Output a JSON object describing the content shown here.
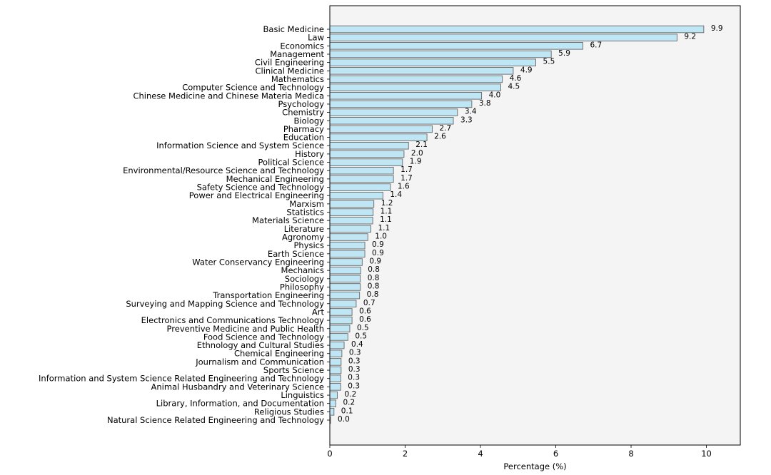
{
  "chart_data": {
    "type": "bar",
    "orientation": "horizontal",
    "xlabel": "Percentage (%)",
    "ylabel": "",
    "xlim": [
      0,
      10.9
    ],
    "x_ticks": [
      0,
      2,
      4,
      6,
      8,
      10
    ],
    "grid": false,
    "bar_color": "#bfe6f5",
    "bar_edge_color": "#666666",
    "plot_background": "#f4f4f4",
    "categories": [
      "Basic Medicine",
      "Law",
      "Economics",
      "Management",
      "Civil Engineering",
      "Clinical Medicine",
      "Mathematics",
      "Computer Science and Technology",
      "Chinese Medicine and Chinese Materia Medica",
      "Psychology",
      "Chemistry",
      "Biology",
      "Pharmacy",
      "Education",
      "Information Science and System Science",
      "History",
      "Political Science",
      "Environmental/Resource Science and Technology",
      "Mechanical Engineering",
      "Safety Science and Technology",
      "Power and Electrical Engineering",
      "Marxism",
      "Statistics",
      "Materials Science",
      "Literature",
      "Agronomy",
      "Physics",
      "Earth Science",
      "Water Conservancy Engineering",
      "Mechanics",
      "Sociology",
      "Philosophy",
      "Transportation Engineering",
      "Surveying and Mapping Science and Technology",
      "Art",
      "Electronics and Communications Technology",
      "Preventive Medicine and Public Health",
      "Food Science and Technology",
      "Ethnology and Cultural Studies",
      "Chemical Engineering",
      "Journalism and Communication",
      "Sports Science",
      "Information and System Science Related Engineering and Technology",
      "Animal Husbandry and Veterinary Science",
      "Linguistics",
      "Library, Information, and Documentation",
      "Religious Studies",
      "Natural Science Related Engineering and Technology"
    ],
    "values": [
      9.93,
      9.22,
      6.72,
      5.88,
      5.47,
      4.87,
      4.58,
      4.54,
      4.03,
      3.77,
      3.39,
      3.28,
      2.72,
      2.58,
      2.09,
      1.97,
      1.93,
      1.69,
      1.69,
      1.61,
      1.41,
      1.17,
      1.15,
      1.14,
      1.09,
      1.01,
      0.93,
      0.93,
      0.86,
      0.82,
      0.81,
      0.81,
      0.79,
      0.7,
      0.59,
      0.59,
      0.53,
      0.48,
      0.38,
      0.32,
      0.3,
      0.3,
      0.29,
      0.29,
      0.2,
      0.16,
      0.11,
      0.02
    ],
    "value_labels": [
      "9.9",
      "9.2",
      "6.7",
      "5.9",
      "5.5",
      "4.9",
      "4.6",
      "4.5",
      "4.0",
      "3.8",
      "3.4",
      "3.3",
      "2.7",
      "2.6",
      "2.1",
      "2.0",
      "1.9",
      "1.7",
      "1.7",
      "1.6",
      "1.4",
      "1.2",
      "1.1",
      "1.1",
      "1.1",
      "1.0",
      "0.9",
      "0.9",
      "0.9",
      "0.8",
      "0.8",
      "0.8",
      "0.8",
      "0.7",
      "0.6",
      "0.6",
      "0.5",
      "0.5",
      "0.4",
      "0.3",
      "0.3",
      "0.3",
      "0.3",
      "0.3",
      "0.2",
      "0.2",
      "0.1",
      "0.0"
    ]
  }
}
